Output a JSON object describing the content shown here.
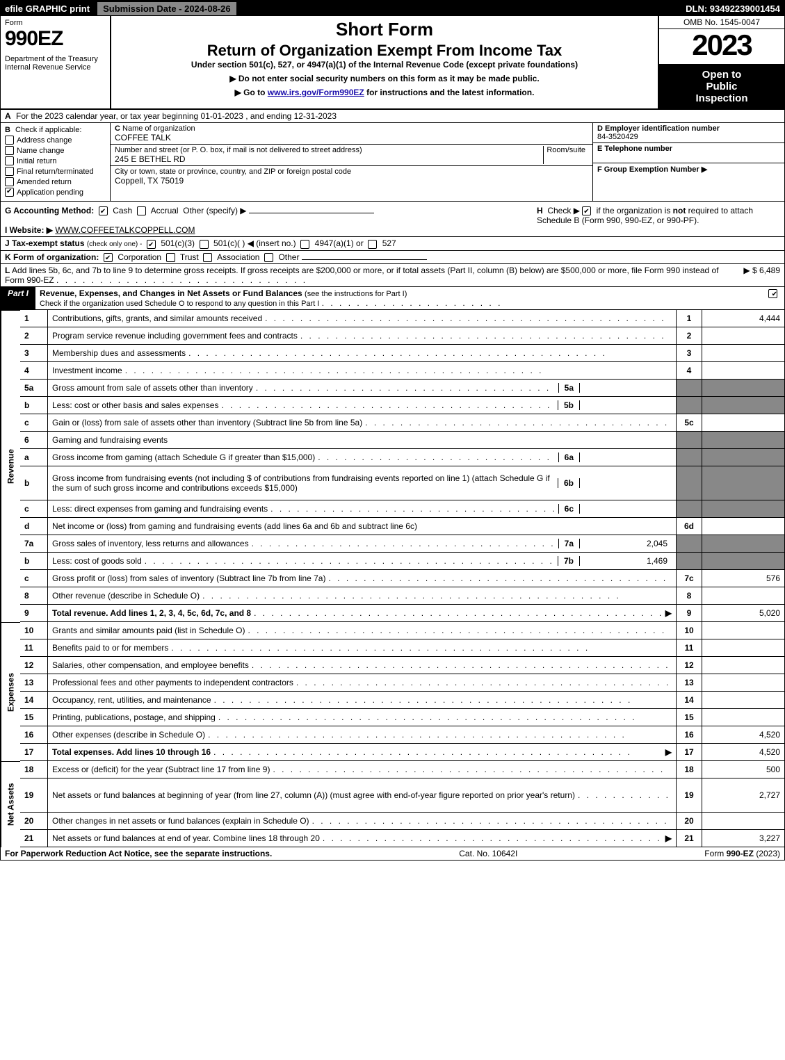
{
  "topbar": {
    "efile": "efile GRAPHIC print",
    "submission_label": "Submission Date - 2024-08-26",
    "dln": "DLN: 93492239001454"
  },
  "header": {
    "form_word": "Form",
    "form_no": "990EZ",
    "dept": "Department of the Treasury\nInternal Revenue Service",
    "title1": "Short Form",
    "title2": "Return of Organization Exempt From Income Tax",
    "under": "Under section 501(c), 527, or 4947(a)(1) of the Internal Revenue Code (except private foundations)",
    "note1": "▶ Do not enter social security numbers on this form as it may be made public.",
    "note2_prefix": "▶ Go to ",
    "note2_link": "www.irs.gov/Form990EZ",
    "note2_suffix": " for instructions and the latest information.",
    "omb": "OMB No. 1545-0047",
    "year": "2023",
    "open_public": "Open to\nPublic\nInspection"
  },
  "rowA": {
    "label": "A",
    "text": "For the 2023 calendar year, or tax year beginning 01-01-2023 , and ending 12-31-2023"
  },
  "B": {
    "label": "B",
    "check_if_applicable": "Check if applicable:",
    "items": [
      {
        "label": "Address change",
        "checked": false
      },
      {
        "label": "Name change",
        "checked": false
      },
      {
        "label": "Initial return",
        "checked": false
      },
      {
        "label": "Final return/terminated",
        "checked": false
      },
      {
        "label": "Amended return",
        "checked": false
      },
      {
        "label": "Application pending",
        "checked": true
      }
    ]
  },
  "C": {
    "label": "C",
    "name_label": "Name of organization",
    "name": "COFFEE TALK",
    "street_label": "Number and street (or P. O. box, if mail is not delivered to street address)",
    "street": "245 E BETHEL RD",
    "room_label": "Room/suite",
    "room": "",
    "city_label": "City or town, state or province, country, and ZIP or foreign postal code",
    "city": "Coppell, TX  75019"
  },
  "D": {
    "label": "D Employer identification number",
    "value": "84-3520429"
  },
  "E": {
    "label": "E Telephone number",
    "value": ""
  },
  "F": {
    "label": "F Group Exemption Number  ▶",
    "value": ""
  },
  "G": {
    "label": "G Accounting Method:",
    "cash_checked": true,
    "cash": "Cash",
    "accrual": "Accrual",
    "other": "Other (specify) ▶"
  },
  "H": {
    "label": "H",
    "text1": "Check ▶ ",
    "text2": " if the organization is ",
    "not": "not",
    "text3": " required to attach Schedule B (Form 990, 990-EZ, or 990-PF).",
    "checked": true
  },
  "I": {
    "label": "I Website: ▶",
    "value": "WWW.COFFEETALKCOPPELL.COM"
  },
  "J": {
    "label": "J Tax-exempt status",
    "note": "(check only one) -",
    "opt1_checked": true,
    "opt1": "501(c)(3)",
    "opt2": "501(c)(  ) ◀ (insert no.)",
    "opt3": "4947(a)(1) or",
    "opt4": "527"
  },
  "K": {
    "label": "K Form of organization:",
    "corp_checked": true,
    "corp": "Corporation",
    "trust": "Trust",
    "assoc": "Association",
    "other": "Other"
  },
  "L": {
    "label": "L",
    "text": "Add lines 5b, 6c, and 7b to line 9 to determine gross receipts. If gross receipts are $200,000 or more, or if total assets (Part II, column (B) below) are $500,000 or more, file Form 990 instead of Form 990-EZ",
    "amount": "▶ $ 6,489"
  },
  "part1": {
    "label": "Part I",
    "title": "Revenue, Expenses, and Changes in Net Assets or Fund Balances",
    "title_note": "(see the instructions for Part I)",
    "sub": "Check if the organization used Schedule O to respond to any question in this Part I",
    "checked": true
  },
  "sections": {
    "revenue_label": "Revenue",
    "expenses_label": "Expenses",
    "net_label": "Net Assets"
  },
  "lines": [
    {
      "sec": "rev",
      "n": "1",
      "desc": "Contributions, gifts, grants, and similar amounts received",
      "ref": "1",
      "val": "4,444"
    },
    {
      "sec": "rev",
      "n": "2",
      "desc": "Program service revenue including government fees and contracts",
      "ref": "2",
      "val": ""
    },
    {
      "sec": "rev",
      "n": "3",
      "desc": "Membership dues and assessments",
      "ref": "3",
      "val": ""
    },
    {
      "sec": "rev",
      "n": "4",
      "desc": "Investment income",
      "ref": "4",
      "val": ""
    },
    {
      "sec": "rev",
      "n": "5a",
      "desc": "Gross amount from sale of assets other than inventory",
      "sub_n": "5a",
      "sub_v": "",
      "ref_grey": true
    },
    {
      "sec": "rev",
      "n": "b",
      "desc": "Less: cost or other basis and sales expenses",
      "sub_n": "5b",
      "sub_v": "",
      "ref_grey": true
    },
    {
      "sec": "rev",
      "n": "c",
      "desc": "Gain or (loss) from sale of assets other than inventory (Subtract line 5b from line 5a)",
      "ref": "5c",
      "val": ""
    },
    {
      "sec": "rev",
      "n": "6",
      "desc": "Gaming and fundraising events",
      "ref_grey": true,
      "no_dots": true
    },
    {
      "sec": "rev",
      "n": "a",
      "desc": "Gross income from gaming (attach Schedule G if greater than $15,000)",
      "sub_n": "6a",
      "sub_v": "",
      "ref_grey": true
    },
    {
      "sec": "rev",
      "n": "b",
      "desc": "Gross income from fundraising events (not including $                           of contributions from fundraising events reported on line 1) (attach Schedule G if the sum of such gross income and contributions exceeds $15,000)",
      "sub_n": "6b",
      "sub_v": "",
      "ref_grey": true,
      "no_dots": true,
      "tall": true
    },
    {
      "sec": "rev",
      "n": "c",
      "desc": "Less: direct expenses from gaming and fundraising events",
      "sub_n": "6c",
      "sub_v": "",
      "ref_grey": true
    },
    {
      "sec": "rev",
      "n": "d",
      "desc": "Net income or (loss) from gaming and fundraising events (add lines 6a and 6b and subtract line 6c)",
      "ref": "6d",
      "val": "",
      "no_dots": true
    },
    {
      "sec": "rev",
      "n": "7a",
      "desc": "Gross sales of inventory, less returns and allowances",
      "sub_n": "7a",
      "sub_v": "2,045",
      "ref_grey": true
    },
    {
      "sec": "rev",
      "n": "b",
      "desc": "Less: cost of goods sold",
      "sub_n": "7b",
      "sub_v": "1,469",
      "ref_grey": true
    },
    {
      "sec": "rev",
      "n": "c",
      "desc": "Gross profit or (loss) from sales of inventory (Subtract line 7b from line 7a)",
      "ref": "7c",
      "val": "576"
    },
    {
      "sec": "rev",
      "n": "8",
      "desc": "Other revenue (describe in Schedule O)",
      "ref": "8",
      "val": ""
    },
    {
      "sec": "rev",
      "n": "9",
      "desc": "Total revenue. Add lines 1, 2, 3, 4, 5c, 6d, 7c, and 8",
      "ref": "9",
      "val": "5,020",
      "bold": true,
      "arrow": true
    },
    {
      "sec": "exp",
      "n": "10",
      "desc": "Grants and similar amounts paid (list in Schedule O)",
      "ref": "10",
      "val": ""
    },
    {
      "sec": "exp",
      "n": "11",
      "desc": "Benefits paid to or for members",
      "ref": "11",
      "val": ""
    },
    {
      "sec": "exp",
      "n": "12",
      "desc": "Salaries, other compensation, and employee benefits",
      "ref": "12",
      "val": ""
    },
    {
      "sec": "exp",
      "n": "13",
      "desc": "Professional fees and other payments to independent contractors",
      "ref": "13",
      "val": ""
    },
    {
      "sec": "exp",
      "n": "14",
      "desc": "Occupancy, rent, utilities, and maintenance",
      "ref": "14",
      "val": ""
    },
    {
      "sec": "exp",
      "n": "15",
      "desc": "Printing, publications, postage, and shipping",
      "ref": "15",
      "val": ""
    },
    {
      "sec": "exp",
      "n": "16",
      "desc": "Other expenses (describe in Schedule O)",
      "ref": "16",
      "val": "4,520"
    },
    {
      "sec": "exp",
      "n": "17",
      "desc": "Total expenses. Add lines 10 through 16",
      "ref": "17",
      "val": "4,520",
      "bold": true,
      "arrow": true
    },
    {
      "sec": "net",
      "n": "18",
      "desc": "Excess or (deficit) for the year (Subtract line 17 from line 9)",
      "ref": "18",
      "val": "500"
    },
    {
      "sec": "net",
      "n": "19",
      "desc": "Net assets or fund balances at beginning of year (from line 27, column (A)) (must agree with end-of-year figure reported on prior year's return)",
      "ref": "19",
      "val": "2,727",
      "tall": true,
      "ref_grey_above": true
    },
    {
      "sec": "net",
      "n": "20",
      "desc": "Other changes in net assets or fund balances (explain in Schedule O)",
      "ref": "20",
      "val": ""
    },
    {
      "sec": "net",
      "n": "21",
      "desc": "Net assets or fund balances at end of year. Combine lines 18 through 20",
      "ref": "21",
      "val": "3,227",
      "arrow": true
    }
  ],
  "footer": {
    "left": "For Paperwork Reduction Act Notice, see the separate instructions.",
    "mid": "Cat. No. 10642I",
    "right_prefix": "Form ",
    "right_bold": "990-EZ",
    "right_suffix": " (2023)"
  }
}
